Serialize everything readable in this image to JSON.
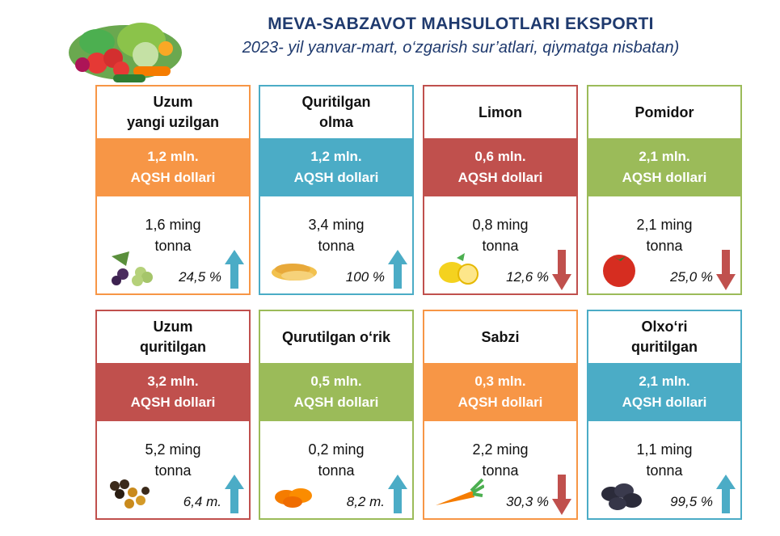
{
  "header": {
    "title": "MEVA-SABZAVOT MAHSULOTLARI EKSPORTI",
    "subtitle": "2023- yil yanvar-mart, o‘zgarish sur’atlari, qiymatga nisbatan)"
  },
  "colors": {
    "orange": "#f79646",
    "blue": "#4bacc6",
    "red": "#c0504d",
    "green": "#9bbb59",
    "title": "#1f3a6e",
    "arrow_up": "#4bacc6",
    "arrow_down": "#c0504d"
  },
  "cards": [
    {
      "name": "Uzum\nyangi uzilgan",
      "value": "1,2 mln.",
      "unit": "AQSH dollari",
      "qty1": "1,6 ming",
      "qty2": "tonna",
      "change": "24,5 %",
      "direction": "up",
      "color": "orange",
      "icon": "grapes-icon"
    },
    {
      "name": "Quritilgan\nolma",
      "value": "1,2 mln.",
      "unit": "AQSH dollari",
      "qty1": "3,4 ming",
      "qty2": "tonna",
      "change": "100 %",
      "direction": "up",
      "color": "blue",
      "icon": "dried-apple-icon"
    },
    {
      "name": "Limon",
      "value": "0,6 mln.",
      "unit": "AQSH dollari",
      "qty1": "0,8 ming",
      "qty2": "tonna",
      "change": "12,6 %",
      "direction": "down",
      "color": "red",
      "icon": "lemon-icon"
    },
    {
      "name": "Pomidor",
      "value": "2,1 mln.",
      "unit": "AQSH dollari",
      "qty1": "2,1 ming",
      "qty2": "tonna",
      "change": "25,0 %",
      "direction": "down",
      "color": "green",
      "icon": "tomato-icon"
    },
    {
      "name": "Uzum\nquritilgan",
      "value": "3,2 mln.",
      "unit": "AQSH dollari",
      "qty1": "5,2 ming",
      "qty2": "tonna",
      "change": "6,4 m.",
      "direction": "up",
      "color": "red",
      "icon": "raisins-icon"
    },
    {
      "name": "Qurutilgan o‘rik",
      "value": "0,5 mln.",
      "unit": "AQSH dollari",
      "qty1": "0,2 ming",
      "qty2": "tonna",
      "change": "8,2  m.",
      "direction": "up",
      "color": "green",
      "icon": "dried-apricot-icon"
    },
    {
      "name": "Sabzi",
      "value": "0,3 mln.",
      "unit": "AQSH dollari",
      "qty1": "2,2 ming",
      "qty2": "tonna",
      "change": "30,3 %",
      "direction": "down",
      "color": "orange",
      "icon": "carrot-icon"
    },
    {
      "name": "Olxo‘ri\nquritilgan",
      "value": "2,1 mln.",
      "unit": "AQSH dollari",
      "qty1": "1,1 ming",
      "qty2": "tonna",
      "change": "99,5 %",
      "direction": "up",
      "color": "blue",
      "icon": "prunes-icon"
    }
  ]
}
